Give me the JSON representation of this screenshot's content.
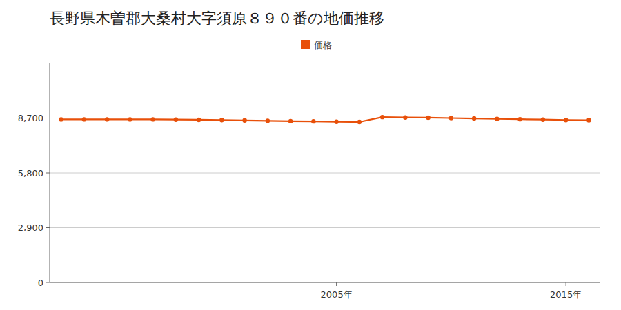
{
  "chart_data": {
    "type": "line",
    "title": "長野県木曽郡大桑村大字須原８９０番の地価推移",
    "x": [
      1993,
      1994,
      1995,
      1996,
      1997,
      1998,
      1999,
      2000,
      2001,
      2002,
      2003,
      2004,
      2005,
      2006,
      2007,
      2008,
      2009,
      2010,
      2011,
      2012,
      2013,
      2014,
      2015,
      2016
    ],
    "series": [
      {
        "name": "価格",
        "color": "#E8500A",
        "marker": "circle",
        "values": [
          8630,
          8630,
          8630,
          8630,
          8630,
          8620,
          8610,
          8600,
          8580,
          8560,
          8540,
          8530,
          8510,
          8500,
          8750,
          8730,
          8720,
          8700,
          8680,
          8660,
          8640,
          8620,
          8600,
          8590
        ]
      }
    ],
    "xlim": [
      1992.5,
      2016.5
    ],
    "xticks": [
      {
        "value": 2005,
        "label": "2005年"
      },
      {
        "value": 2015,
        "label": "2015年"
      }
    ],
    "ylim": [
      0,
      11600
    ],
    "yticks": [
      0,
      {
        "value": 2900,
        "label": "2,900"
      },
      {
        "value": 5800,
        "label": "5,800"
      },
      {
        "value": 8700,
        "label": "8,700"
      }
    ],
    "grid": "y",
    "legend": "top"
  }
}
